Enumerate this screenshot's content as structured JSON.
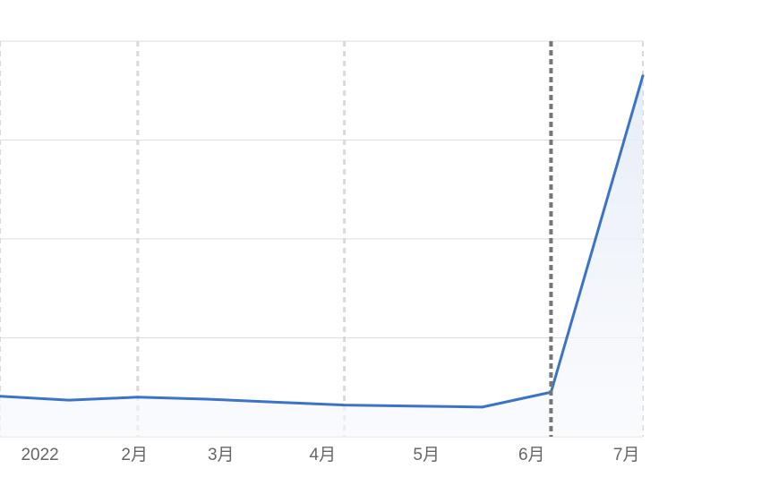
{
  "chart_data": {
    "type": "area",
    "title": "",
    "xlabel": "",
    "ylabel": "",
    "x_tick_labels": [
      "2022",
      "2月",
      "3月",
      "4月",
      "5月",
      "6月",
      "7月"
    ],
    "series": [
      {
        "values": [
          {
            "x": "2021-12-22",
            "y": 41
          },
          {
            "x": "2022-01-12",
            "y": 37
          },
          {
            "x": "2022-02-02",
            "y": 40
          },
          {
            "x": "2022-02-23",
            "y": 38
          },
          {
            "x": "2022-03-16",
            "y": 35
          },
          {
            "x": "2022-04-06",
            "y": 32
          },
          {
            "x": "2022-04-27",
            "y": 31
          },
          {
            "x": "2022-05-18",
            "y": 30
          },
          {
            "x": "2022-06-08",
            "y": 45
          },
          {
            "x": "2022-07-06",
            "y": 365
          }
        ]
      }
    ],
    "ylim": [
      0,
      400
    ],
    "y_gridlines": [
      0,
      100,
      200,
      300,
      400
    ],
    "grid": true,
    "colors": {
      "line": "#3b73c7",
      "fill": "#eef2f9",
      "grid": "#dddddd",
      "dashed_grid": "#d9d9d9",
      "marker_line": "#777777",
      "tick_text": "#666666"
    }
  }
}
